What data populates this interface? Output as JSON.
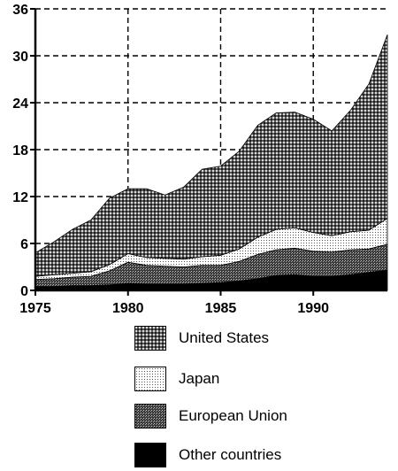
{
  "chart_data": {
    "type": "area",
    "stacked": true,
    "x": [
      1975,
      1976,
      1977,
      1978,
      1979,
      1980,
      1981,
      1982,
      1983,
      1984,
      1985,
      1986,
      1987,
      1988,
      1989,
      1990,
      1991,
      1992,
      1993,
      1994
    ],
    "series": [
      {
        "name": "Other countries",
        "pattern": "solid-black",
        "values": [
          0.5,
          0.5,
          0.6,
          0.6,
          0.7,
          0.9,
          0.8,
          0.8,
          0.8,
          0.9,
          1.0,
          1.2,
          1.5,
          1.9,
          2.0,
          1.8,
          1.8,
          2.0,
          2.3,
          2.6
        ]
      },
      {
        "name": "European Union",
        "pattern": "dense-dots",
        "values": [
          0.9,
          1.0,
          1.1,
          1.2,
          1.8,
          2.7,
          2.4,
          2.3,
          2.2,
          2.3,
          2.2,
          2.5,
          3.1,
          3.3,
          3.4,
          3.2,
          3.1,
          3.2,
          3.0,
          3.3
        ]
      },
      {
        "name": "Japan",
        "pattern": "light-dots",
        "values": [
          0.4,
          0.5,
          0.5,
          0.6,
          0.8,
          1.1,
          1.0,
          1.0,
          1.0,
          1.1,
          1.3,
          1.6,
          2.2,
          2.6,
          2.6,
          2.4,
          2.1,
          2.3,
          2.4,
          3.3
        ]
      },
      {
        "name": "United States",
        "pattern": "crosshatch",
        "values": [
          3.0,
          4.2,
          5.6,
          6.6,
          8.5,
          8.3,
          8.8,
          8.1,
          9.2,
          11.2,
          11.4,
          12.5,
          14.3,
          14.9,
          14.8,
          14.5,
          13.4,
          15.5,
          18.7,
          23.5
        ]
      }
    ],
    "xticks": [
      1975,
      1980,
      1985,
      1990
    ],
    "yticks": [
      0,
      6,
      12,
      18,
      24,
      30,
      36
    ],
    "xlim": [
      1975,
      1994
    ],
    "ylim": [
      0,
      36
    ],
    "grid": true,
    "legend_position": "below",
    "title": "",
    "xlabel": "",
    "ylabel": ""
  },
  "legend": {
    "items": [
      {
        "label": "United States",
        "pattern": "crosshatch"
      },
      {
        "label": "Japan",
        "pattern": "light-dots"
      },
      {
        "label": "European Union",
        "pattern": "dense-dots"
      },
      {
        "label": "Other countries",
        "pattern": "solid-black"
      }
    ]
  }
}
